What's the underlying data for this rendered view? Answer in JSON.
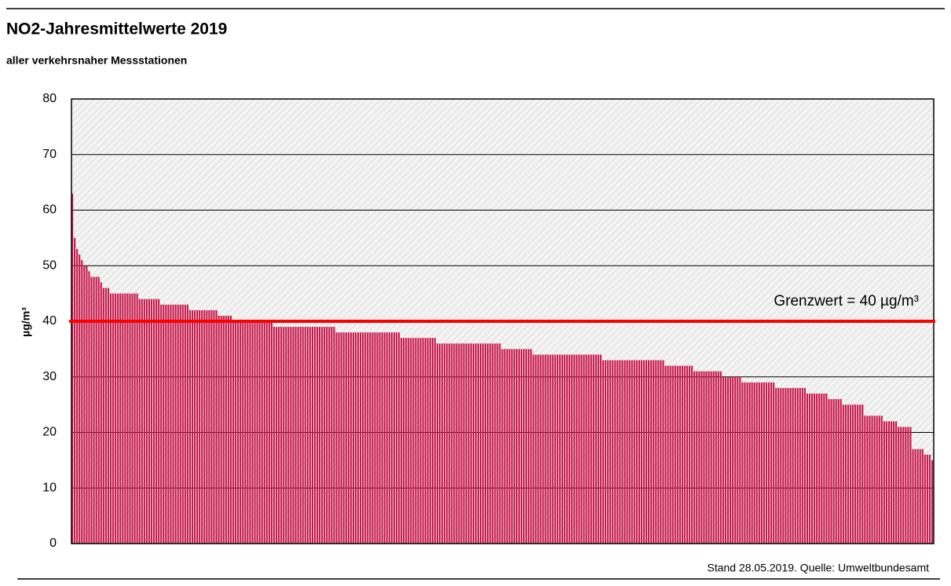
{
  "chart_data": {
    "type": "bar",
    "title": "NO2-Jahresmittelwerte 2019",
    "subtitle": "aller verkehrsnaher Messstationen",
    "y_label": "µg/m³",
    "footer": "Stand 28.05.2019. Quelle: Umweltbundesamt",
    "threshold": {
      "value": 40,
      "label": "Grenzwert = 40 µg/m³",
      "color": "#ff0000"
    },
    "color": "#c8174a",
    "ylim": [
      0,
      80
    ],
    "yticks": [
      0,
      10,
      20,
      30,
      40,
      50,
      60,
      70,
      80
    ],
    "grid": true,
    "values": [
      63,
      55,
      53,
      52,
      51,
      50,
      50,
      49,
      48,
      48,
      48,
      48,
      47,
      46,
      46,
      46,
      45,
      45,
      45,
      45,
      45,
      45,
      45,
      45,
      45,
      45,
      45,
      45,
      44,
      44,
      44,
      44,
      44,
      44,
      44,
      44,
      44,
      43,
      43,
      43,
      43,
      43,
      43,
      43,
      43,
      43,
      43,
      43,
      43,
      42,
      42,
      42,
      42,
      42,
      42,
      42,
      42,
      42,
      42,
      42,
      42,
      41,
      41,
      41,
      41,
      41,
      41,
      40,
      40,
      40,
      40,
      40,
      40,
      40,
      40,
      40,
      40,
      40,
      40,
      40,
      40,
      40,
      40,
      40,
      39,
      39,
      39,
      39,
      39,
      39,
      39,
      39,
      39,
      39,
      39,
      39,
      39,
      39,
      39,
      39,
      39,
      39,
      39,
      39,
      39,
      39,
      39,
      39,
      39,
      39,
      38,
      38,
      38,
      38,
      38,
      38,
      38,
      38,
      38,
      38,
      38,
      38,
      38,
      38,
      38,
      38,
      38,
      38,
      38,
      38,
      38,
      38,
      38,
      38,
      38,
      38,
      38,
      37,
      37,
      37,
      37,
      37,
      37,
      37,
      37,
      37,
      37,
      37,
      37,
      37,
      37,
      37,
      36,
      36,
      36,
      36,
      36,
      36,
      36,
      36,
      36,
      36,
      36,
      36,
      36,
      36,
      36,
      36,
      36,
      36,
      36,
      36,
      36,
      36,
      36,
      36,
      36,
      36,
      36,
      35,
      35,
      35,
      35,
      35,
      35,
      35,
      35,
      35,
      35,
      35,
      35,
      35,
      34,
      34,
      34,
      34,
      34,
      34,
      34,
      34,
      34,
      34,
      34,
      34,
      34,
      34,
      34,
      34,
      34,
      34,
      34,
      34,
      34,
      34,
      34,
      34,
      34,
      34,
      34,
      34,
      34,
      33,
      33,
      33,
      33,
      33,
      33,
      33,
      33,
      33,
      33,
      33,
      33,
      33,
      33,
      33,
      33,
      33,
      33,
      33,
      33,
      33,
      33,
      33,
      33,
      33,
      33,
      32,
      32,
      32,
      32,
      32,
      32,
      32,
      32,
      32,
      32,
      32,
      32,
      31,
      31,
      31,
      31,
      31,
      31,
      31,
      31,
      31,
      31,
      31,
      31,
      30,
      30,
      30,
      30,
      30,
      30,
      30,
      30,
      29,
      29,
      29,
      29,
      29,
      29,
      29,
      29,
      29,
      29,
      29,
      29,
      29,
      29,
      28,
      28,
      28,
      28,
      28,
      28,
      28,
      28,
      28,
      28,
      28,
      28,
      28,
      27,
      27,
      27,
      27,
      27,
      27,
      27,
      27,
      27,
      26,
      26,
      26,
      26,
      26,
      26,
      25,
      25,
      25,
      25,
      25,
      25,
      25,
      25,
      25,
      23,
      23,
      23,
      23,
      23,
      23,
      23,
      23,
      22,
      22,
      22,
      22,
      22,
      22,
      21,
      21,
      21,
      21,
      21,
      21,
      17,
      17,
      17,
      17,
      17,
      16,
      16,
      16,
      15
    ]
  }
}
